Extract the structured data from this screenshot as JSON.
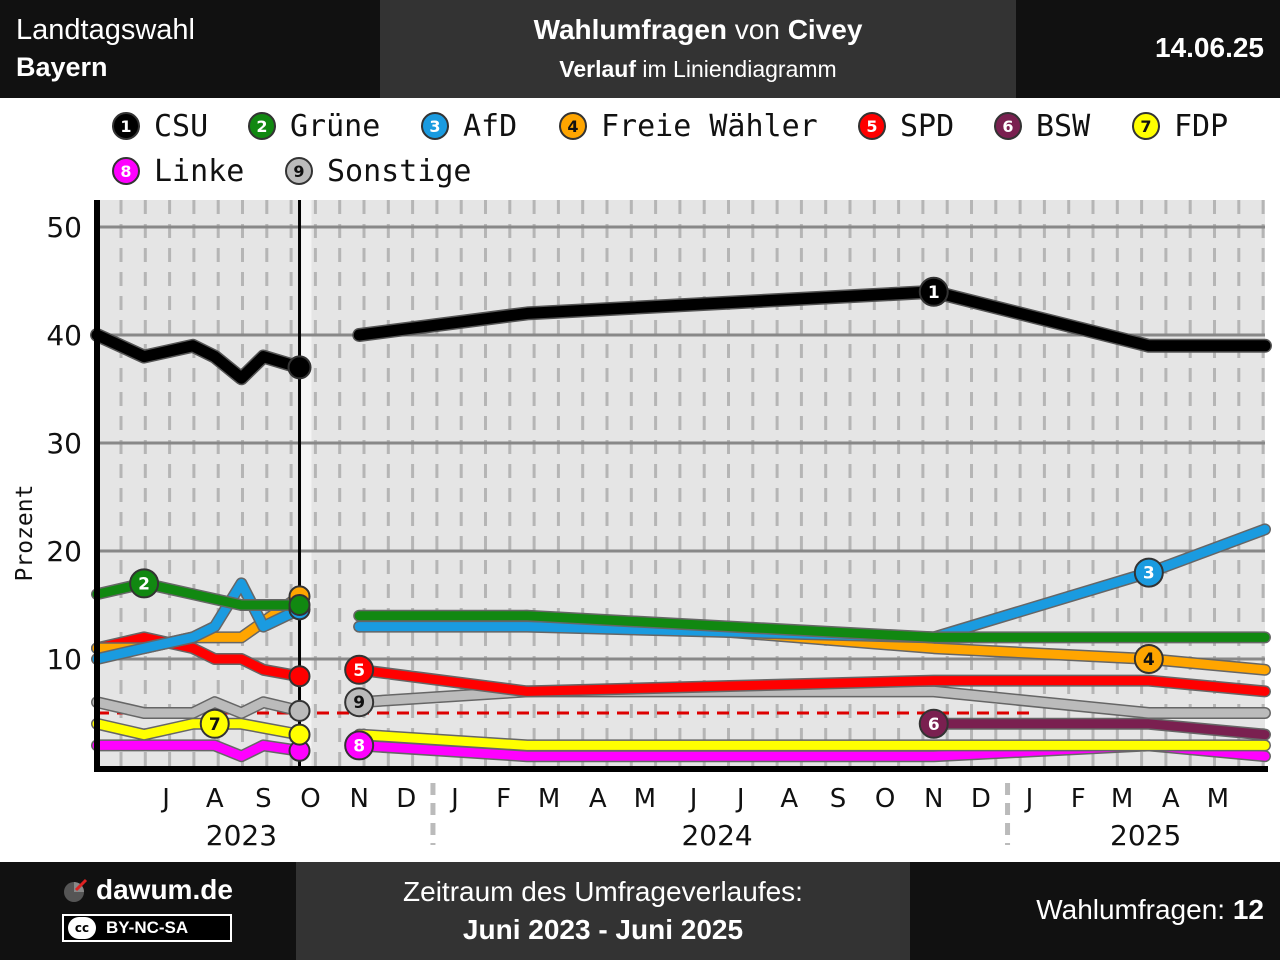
{
  "header": {
    "election_type": "Landtagswahl",
    "region": "Bayern",
    "title_part1": "Wahlumfragen",
    "title_part2": " von ",
    "institute": "Civey",
    "subtitle_part1": "Verlauf",
    "subtitle_part2": " im Liniendiagramm",
    "date": "14.06.25"
  },
  "footer": {
    "site": "dawum.de",
    "license": "BY-NC-SA",
    "license_badge": "cc",
    "period_label": "Zeitraum des Umfrageverlaufes:",
    "period": "Juni 2023 - Juni 2025",
    "count_label": "Wahlumfragen: ",
    "count": "12"
  },
  "colors": {
    "CSU": "#000000",
    "Gruene": "#118811",
    "AfD": "#1a9be0",
    "FW": "#ffa500",
    "SPD": "#ff0000",
    "BSW": "#7a2050",
    "FDP": "#ffff00",
    "Linke": "#ff00ff",
    "Sonstige": "#bbbbbb",
    "threshold": "#dd0000",
    "plot_bg": "#e5e5e5"
  },
  "chart_data": {
    "type": "line",
    "ylabel": "Prozent",
    "ylim": [
      0,
      50
    ],
    "yticks": [
      10,
      20,
      30,
      40,
      50
    ],
    "threshold": 5,
    "xlim": [
      "2023-06-01",
      "2025-06-14"
    ],
    "month_labels": [
      {
        "date": "2023-07-15",
        "label": "J"
      },
      {
        "date": "2023-08-15",
        "label": "A"
      },
      {
        "date": "2023-09-15",
        "label": "S"
      },
      {
        "date": "2023-10-15",
        "label": "O"
      },
      {
        "date": "2023-11-15",
        "label": "N"
      },
      {
        "date": "2023-12-15",
        "label": "D"
      },
      {
        "date": "2024-01-15",
        "label": "J"
      },
      {
        "date": "2024-02-15",
        "label": "F"
      },
      {
        "date": "2024-03-15",
        "label": "M"
      },
      {
        "date": "2024-04-15",
        "label": "A"
      },
      {
        "date": "2024-05-15",
        "label": "M"
      },
      {
        "date": "2024-06-15",
        "label": "J"
      },
      {
        "date": "2024-07-15",
        "label": "J"
      },
      {
        "date": "2024-08-15",
        "label": "A"
      },
      {
        "date": "2024-09-15",
        "label": "S"
      },
      {
        "date": "2024-10-15",
        "label": "O"
      },
      {
        "date": "2024-11-15",
        "label": "N"
      },
      {
        "date": "2024-12-15",
        "label": "D"
      },
      {
        "date": "2025-01-15",
        "label": "J"
      },
      {
        "date": "2025-02-15",
        "label": "F"
      },
      {
        "date": "2025-03-15",
        "label": "M"
      },
      {
        "date": "2025-04-15",
        "label": "A"
      },
      {
        "date": "2025-05-15",
        "label": "M"
      }
    ],
    "year_labels": [
      {
        "date": "2023-09-01",
        "label": "2023"
      },
      {
        "date": "2024-06-30",
        "label": "2024"
      },
      {
        "date": "2025-03-30",
        "label": "2025"
      }
    ],
    "election_date": "2023-10-08",
    "series": [
      {
        "key": "CSU",
        "name": "CSU",
        "num": "1",
        "pre": [
          [
            "2023-06-01",
            40
          ],
          [
            "2023-07-01",
            38
          ],
          [
            "2023-08-01",
            39
          ],
          [
            "2023-08-15",
            38
          ],
          [
            "2023-09-01",
            36
          ],
          [
            "2023-09-15",
            38
          ],
          [
            "2023-10-08",
            37
          ]
        ],
        "post": [
          [
            "2023-11-15",
            40
          ],
          [
            "2024-03-01",
            42
          ],
          [
            "2024-11-15",
            44
          ],
          [
            "2025-04-01",
            39
          ],
          [
            "2025-06-14",
            39
          ]
        ],
        "label_at": [
          "2024-11-15",
          44
        ]
      },
      {
        "key": "Gruene",
        "name": "Grüne",
        "num": "2",
        "pre": [
          [
            "2023-06-01",
            16
          ],
          [
            "2023-07-01",
            17
          ],
          [
            "2023-08-01",
            16
          ],
          [
            "2023-09-01",
            15
          ],
          [
            "2023-10-08",
            15
          ]
        ],
        "post": [
          [
            "2023-11-15",
            14
          ],
          [
            "2024-03-01",
            14
          ],
          [
            "2024-11-15",
            12
          ],
          [
            "2025-04-01",
            12
          ],
          [
            "2025-06-14",
            12
          ]
        ],
        "label_at": [
          "2023-07-01",
          17
        ]
      },
      {
        "key": "AfD",
        "name": "AfD",
        "num": "3",
        "pre": [
          [
            "2023-06-01",
            10
          ],
          [
            "2023-07-01",
            11
          ],
          [
            "2023-08-01",
            12
          ],
          [
            "2023-08-15",
            13
          ],
          [
            "2023-09-01",
            17
          ],
          [
            "2023-09-15",
            13
          ],
          [
            "2023-10-08",
            14.6
          ]
        ],
        "post": [
          [
            "2023-11-15",
            13
          ],
          [
            "2024-03-01",
            13
          ],
          [
            "2024-11-15",
            12
          ],
          [
            "2025-04-01",
            18
          ],
          [
            "2025-06-14",
            22
          ]
        ],
        "label_at": [
          "2025-04-01",
          18
        ]
      },
      {
        "key": "FW",
        "name": "Freie Wähler",
        "num": "4",
        "pre": [
          [
            "2023-06-01",
            11
          ],
          [
            "2023-07-01",
            11
          ],
          [
            "2023-08-01",
            12
          ],
          [
            "2023-09-01",
            12
          ],
          [
            "2023-10-08",
            15.8
          ]
        ],
        "post": [
          [
            "2023-11-15",
            13
          ],
          [
            "2024-03-01",
            14
          ],
          [
            "2024-11-15",
            11
          ],
          [
            "2025-04-01",
            10
          ],
          [
            "2025-06-14",
            9
          ]
        ],
        "label_at": [
          "2025-04-01",
          10
        ]
      },
      {
        "key": "SPD",
        "name": "SPD",
        "num": "5",
        "pre": [
          [
            "2023-06-01",
            11
          ],
          [
            "2023-07-01",
            12
          ],
          [
            "2023-08-01",
            11
          ],
          [
            "2023-08-15",
            10
          ],
          [
            "2023-09-01",
            10
          ],
          [
            "2023-09-15",
            9
          ],
          [
            "2023-10-08",
            8.4
          ]
        ],
        "post": [
          [
            "2023-11-15",
            9
          ],
          [
            "2024-03-01",
            7
          ],
          [
            "2024-11-15",
            8
          ],
          [
            "2025-04-01",
            8
          ],
          [
            "2025-06-14",
            7
          ]
        ],
        "label_at": [
          "2023-11-15",
          9
        ]
      },
      {
        "key": "BSW",
        "name": "BSW",
        "num": "6",
        "pre": [],
        "post": [
          [
            "2024-11-15",
            4
          ],
          [
            "2025-04-01",
            4
          ],
          [
            "2025-06-14",
            3
          ]
        ],
        "label_at": [
          "2024-11-15",
          4
        ]
      },
      {
        "key": "FDP",
        "name": "FDP",
        "num": "7",
        "pre": [
          [
            "2023-06-01",
            4
          ],
          [
            "2023-07-01",
            3
          ],
          [
            "2023-08-01",
            4
          ],
          [
            "2023-09-01",
            4
          ],
          [
            "2023-10-08",
            3
          ]
        ],
        "post": [
          [
            "2023-11-15",
            3
          ],
          [
            "2024-03-01",
            2
          ],
          [
            "2024-11-15",
            2
          ],
          [
            "2025-04-01",
            2
          ],
          [
            "2025-06-14",
            2
          ]
        ],
        "label_at": [
          "2023-08-15",
          4
        ]
      },
      {
        "key": "Linke",
        "name": "Linke",
        "num": "8",
        "pre": [
          [
            "2023-06-01",
            2
          ],
          [
            "2023-07-01",
            2
          ],
          [
            "2023-08-01",
            2
          ],
          [
            "2023-08-15",
            2
          ],
          [
            "2023-09-01",
            1
          ],
          [
            "2023-09-15",
            2
          ],
          [
            "2023-10-08",
            1.5
          ]
        ],
        "post": [
          [
            "2023-11-15",
            2
          ],
          [
            "2024-03-01",
            1
          ],
          [
            "2024-11-15",
            1
          ],
          [
            "2025-04-01",
            2
          ],
          [
            "2025-06-14",
            1
          ]
        ],
        "label_at": [
          "2023-11-15",
          2
        ]
      },
      {
        "key": "Sonstige",
        "name": "Sonstige",
        "num": "9",
        "pre": [
          [
            "2023-06-01",
            6
          ],
          [
            "2023-07-01",
            5
          ],
          [
            "2023-08-01",
            5
          ],
          [
            "2023-08-15",
            6
          ],
          [
            "2023-09-01",
            5
          ],
          [
            "2023-09-15",
            6
          ],
          [
            "2023-10-08",
            5.2
          ]
        ],
        "post": [
          [
            "2023-11-15",
            6
          ],
          [
            "2024-03-01",
            7
          ],
          [
            "2024-11-15",
            7
          ],
          [
            "2025-04-01",
            5
          ],
          [
            "2025-06-14",
            5
          ]
        ],
        "label_at": [
          "2023-11-15",
          6
        ]
      }
    ]
  }
}
